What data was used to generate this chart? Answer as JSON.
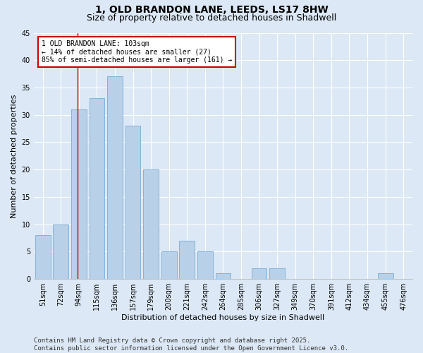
{
  "title": "1, OLD BRANDON LANE, LEEDS, LS17 8HW",
  "subtitle": "Size of property relative to detached houses in Shadwell",
  "xlabel": "Distribution of detached houses by size in Shadwell",
  "ylabel": "Number of detached properties",
  "categories": [
    "51sqm",
    "72sqm",
    "94sqm",
    "115sqm",
    "136sqm",
    "157sqm",
    "179sqm",
    "200sqm",
    "221sqm",
    "242sqm",
    "264sqm",
    "285sqm",
    "306sqm",
    "327sqm",
    "349sqm",
    "370sqm",
    "391sqm",
    "412sqm",
    "434sqm",
    "455sqm",
    "476sqm"
  ],
  "values": [
    8,
    10,
    31,
    33,
    37,
    28,
    20,
    5,
    7,
    5,
    1,
    0,
    2,
    2,
    0,
    0,
    0,
    0,
    0,
    1,
    0
  ],
  "bar_color": "#b8d0e8",
  "bar_edge_color": "#7aadd4",
  "background_color": "#dce8f5",
  "grid_color": "#ffffff",
  "annotation_text": "1 OLD BRANDON LANE: 103sqm\n← 14% of detached houses are smaller (27)\n85% of semi-detached houses are larger (161) →",
  "annotation_box_color": "#ffffff",
  "annotation_border_color": "#cc0000",
  "property_size": 103,
  "bin_starts": [
    51,
    72,
    94,
    115,
    136,
    157,
    179,
    200,
    221,
    242,
    264,
    285,
    306,
    327,
    349,
    370,
    391,
    412,
    434,
    455,
    476
  ],
  "bin_ends": [
    72,
    94,
    115,
    136,
    157,
    179,
    200,
    221,
    242,
    264,
    285,
    306,
    327,
    349,
    370,
    391,
    412,
    434,
    455,
    476,
    497
  ],
  "ylim": [
    0,
    45
  ],
  "yticks": [
    0,
    5,
    10,
    15,
    20,
    25,
    30,
    35,
    40,
    45
  ],
  "footer": "Contains HM Land Registry data © Crown copyright and database right 2025.\nContains public sector information licensed under the Open Government Licence v3.0.",
  "title_fontsize": 10,
  "subtitle_fontsize": 9,
  "xlabel_fontsize": 8,
  "ylabel_fontsize": 8,
  "tick_fontsize": 7,
  "annot_fontsize": 7,
  "footer_fontsize": 6.5
}
